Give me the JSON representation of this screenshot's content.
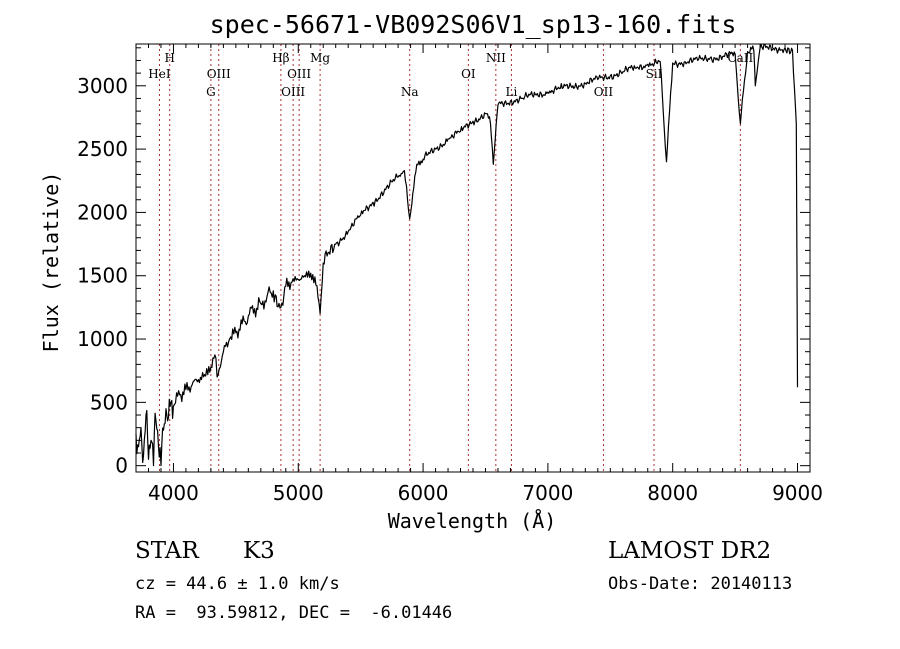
{
  "chart_data": {
    "type": "line",
    "title": "spec-56671-VB092S06V1_sp13-160.fits",
    "xlabel": "Wavelength (Å)",
    "ylabel": "Flux (relative)",
    "xlim": [
      3700,
      9100
    ],
    "ylim": [
      -50,
      3330
    ],
    "xticks": [
      4000,
      5000,
      6000,
      7000,
      8000,
      9000
    ],
    "yticks": [
      0,
      500,
      1000,
      1500,
      2000,
      2500,
      3000
    ],
    "grid": false,
    "series": [
      {
        "x": [
          3700,
          3720,
          3740,
          3760,
          3780,
          3800,
          3820,
          3840,
          3860,
          3880,
          3900,
          3920,
          3940,
          3960,
          3980,
          4000,
          4050,
          4100,
          4150,
          4200,
          4250,
          4300,
          4340,
          4350,
          4400,
          4450,
          4500,
          4550,
          4600,
          4650,
          4700,
          4750,
          4800,
          4861,
          4900,
          4950,
          5000,
          5050,
          5100,
          5150,
          5175,
          5200,
          5300,
          5400,
          5500,
          5600,
          5700,
          5800,
          5850,
          5893,
          5950,
          6000,
          6100,
          6200,
          6300,
          6400,
          6500,
          6540,
          6563,
          6600,
          6700,
          6800,
          6900,
          7000,
          7100,
          7200,
          7300,
          7400,
          7500,
          7600,
          7700,
          7800,
          7900,
          7950,
          8000,
          8100,
          8200,
          8300,
          8400,
          8500,
          8542,
          8600,
          8650,
          8662,
          8700,
          8800,
          8900,
          8960,
          8990,
          9000
        ],
        "values": [
          250,
          150,
          300,
          80,
          400,
          50,
          200,
          0,
          350,
          150,
          0,
          280,
          450,
          380,
          500,
          470,
          560,
          600,
          640,
          680,
          720,
          780,
          850,
          700,
          900,
          1000,
          1050,
          1120,
          1180,
          1240,
          1280,
          1340,
          1380,
          1250,
          1420,
          1450,
          1470,
          1500,
          1520,
          1420,
          1200,
          1600,
          1750,
          1850,
          1980,
          2080,
          2180,
          2280,
          2330,
          1950,
          2380,
          2420,
          2500,
          2580,
          2640,
          2720,
          2780,
          2700,
          2380,
          2850,
          2880,
          2900,
          2930,
          2950,
          2980,
          3000,
          3020,
          3050,
          3080,
          3110,
          3140,
          3170,
          3190,
          2400,
          3180,
          3190,
          3200,
          3220,
          3230,
          3250,
          2700,
          3270,
          3280,
          3000,
          3300,
          3290,
          3300,
          3280,
          2700,
          620
        ]
      }
    ],
    "lines": [
      {
        "wave": 3888,
        "label": "HeI",
        "row": 2
      },
      {
        "wave": 3970,
        "label": "H",
        "row": 1
      },
      {
        "wave": 4300,
        "label": "G",
        "row": 3
      },
      {
        "wave": 4363,
        "label": "OIII",
        "row": 2
      },
      {
        "wave": 4861,
        "label": "Hβ",
        "row": 1
      },
      {
        "wave": 4959,
        "label": "OIII",
        "row": 3
      },
      {
        "wave": 5007,
        "label": "OIII",
        "row": 2
      },
      {
        "wave": 5175,
        "label": "Mg",
        "row": 1
      },
      {
        "wave": 5893,
        "label": "Na",
        "row": 3
      },
      {
        "wave": 6363,
        "label": "OI",
        "row": 2
      },
      {
        "wave": 6583,
        "label": "NII",
        "row": 1
      },
      {
        "wave": 6708,
        "label": "Li",
        "row": 3
      },
      {
        "wave": 7445,
        "label": "OII",
        "row": 3
      },
      {
        "wave": 7850,
        "label": "SiI",
        "row": 2
      },
      {
        "wave": 8542,
        "label": "CaII",
        "row": 1
      }
    ]
  },
  "info": {
    "class_label": "STAR",
    "subclass": "K3",
    "cz_line": "cz = 44.6 ± 1.0 km/s",
    "coord_line": "RA =  93.59812, DEC =  -6.01446",
    "survey": "LAMOST DR2",
    "obs_date_line": "Obs-Date: 20140113"
  }
}
